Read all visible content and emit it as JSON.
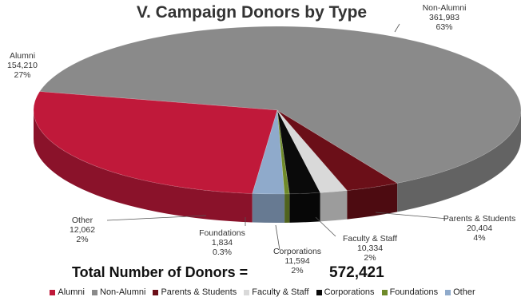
{
  "chart_data": {
    "type": "pie",
    "title": "V. Campaign Donors by Type",
    "slices": [
      {
        "name": "Alumni",
        "value": 154210,
        "value_label": "154,210",
        "pct_label": "27%",
        "color": "#c0193a"
      },
      {
        "name": "Non-Alumni",
        "value": 361983,
        "value_label": "361,983",
        "pct_label": "63%",
        "color": "#8a8a8a"
      },
      {
        "name": "Parents & Students",
        "value": 20404,
        "value_label": "20,404",
        "pct_label": "4%",
        "color": "#6b0f18"
      },
      {
        "name": "Faculty & Staff",
        "value": 10334,
        "value_label": "10,334",
        "pct_label": "2%",
        "color": "#d9d9d9"
      },
      {
        "name": "Corporations",
        "value": 11594,
        "value_label": "11,594",
        "pct_label": "2%",
        "color": "#0a0a0a"
      },
      {
        "name": "Foundations",
        "value": 1834,
        "value_label": "1,834",
        "pct_label": "0.3%",
        "color": "#6f8a2a"
      },
      {
        "name": "Other",
        "value": 12062,
        "value_label": "12,062",
        "pct_label": "2%",
        "color": "#8faacb"
      }
    ],
    "legend_position": "bottom",
    "style": "3d-pie"
  },
  "total": {
    "label": "Total Number of Donors =",
    "value": "572,421"
  }
}
